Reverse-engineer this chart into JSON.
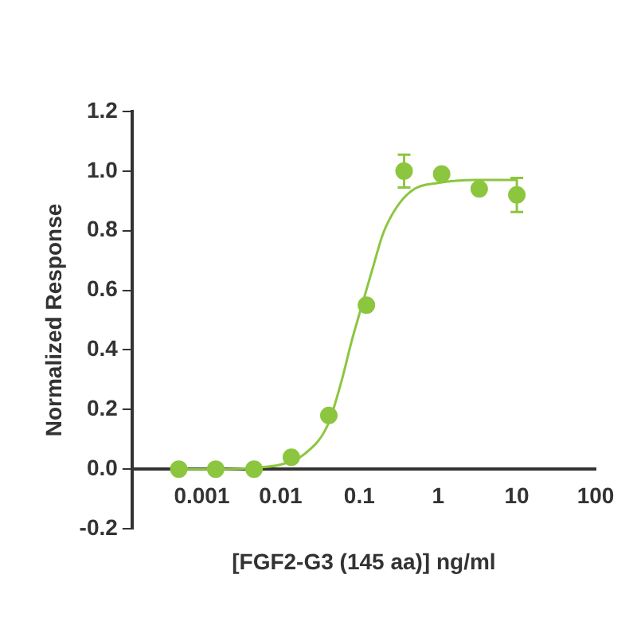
{
  "chart_data": {
    "type": "scatter",
    "xlabel": "[FGF2-G3 (145 aa)] ng/ml",
    "ylabel": "Normalized Response",
    "log": "x",
    "xlim": [
      0.00013,
      100
    ],
    "xticks": [
      0.001,
      0.01,
      0.1,
      1,
      10,
      100
    ],
    "ylim": [
      -0.2,
      1.2
    ],
    "yticks": [
      -0.2,
      {
        "value": 0,
        "label": "0.0"
      },
      0.2,
      0.4,
      0.6,
      0.8,
      {
        "value": 1,
        "label": "1.0"
      },
      1.2
    ],
    "grid": false,
    "legend": false,
    "series": [
      {
        "type": "scatter",
        "marker": "circle",
        "color": "#8cc63f",
        "x": [
          0.00051,
          0.0015,
          0.0046,
          0.0137,
          0.041,
          0.123,
          0.37,
          1.11,
          3.33,
          10
        ],
        "values": [
          0.0,
          0.0,
          0.0,
          0.04,
          0.18,
          0.55,
          1.0,
          0.99,
          0.94,
          0.92
        ],
        "errors": [
          null,
          null,
          null,
          null,
          null,
          null,
          0.055,
          null,
          null,
          0.057
        ]
      },
      {
        "type": "line",
        "marker": "none",
        "color": "#8cc63f",
        "x": [
          0.0005,
          0.002,
          0.005,
          0.01,
          0.02,
          0.04,
          0.06,
          0.08,
          0.1,
          0.15,
          0.2,
          0.3,
          0.5,
          1,
          3,
          10
        ],
        "values": [
          0.0,
          0.0,
          0.005,
          0.015,
          0.05,
          0.15,
          0.3,
          0.43,
          0.52,
          0.68,
          0.79,
          0.88,
          0.94,
          0.96,
          0.97,
          0.97
        ]
      }
    ]
  }
}
